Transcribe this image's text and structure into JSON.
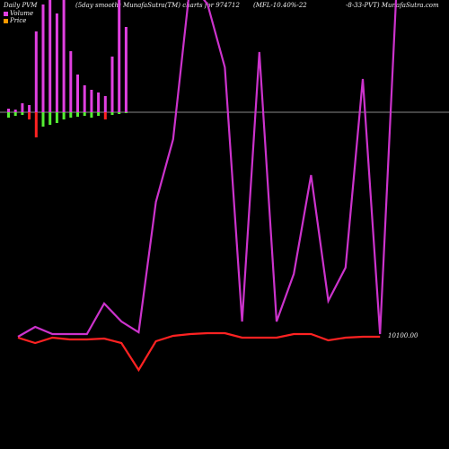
{
  "header": {
    "left": "Daily PVM",
    "mid": "(5day smooth) MunafaSutra(TM) charts for 974712",
    "right1": "(MFL-10.40%-22",
    "right2": "-8-33-PVT) MunafaSutra.com"
  },
  "legend": [
    {
      "label": "Volume",
      "color": "#e040e0"
    },
    {
      "label": "Price",
      "color": "#ff9900"
    }
  ],
  "colors": {
    "volume": "#e040e0",
    "volume_up": "#55ee33",
    "volume_down": "#ff2222",
    "pvm_line": "#cc33cc",
    "price_line": "#ff2222",
    "smooth_line": "#cc33cc",
    "baseline": "#888888"
  },
  "chart_data": {
    "type": "bar",
    "price_label": "10100.00",
    "volume_bars": [
      4,
      3,
      10,
      8,
      90,
      120,
      150,
      110,
      145,
      68,
      42,
      30,
      25,
      22,
      18,
      62,
      130,
      95
    ],
    "change_bars": [
      -6,
      -4,
      -3,
      -8,
      -28,
      -16,
      -14,
      -12,
      -8,
      -6,
      -5,
      -4,
      -6,
      -4,
      -8,
      -3,
      -2,
      -1
    ],
    "change_colors": [
      "up",
      "up",
      "up",
      "down",
      "down",
      "up",
      "up",
      "up",
      "up",
      "up",
      "up",
      "up",
      "up",
      "up",
      "down",
      "up",
      "up",
      "up"
    ],
    "pvm_series": [
      {
        "values": [
          375,
          364,
          372,
          372,
          372,
          338,
          358,
          370,
          225,
          155,
          -20,
          5,
          75,
          358,
          58,
          358,
          305,
          195,
          335,
          298,
          88,
          372,
          -30
        ]
      }
    ],
    "price_series": [
      376,
      382,
      376,
      378,
      378,
      377,
      382,
      412,
      380,
      374,
      372,
      371,
      371,
      376,
      376,
      376,
      372,
      372,
      379,
      376,
      375,
      375
    ]
  }
}
